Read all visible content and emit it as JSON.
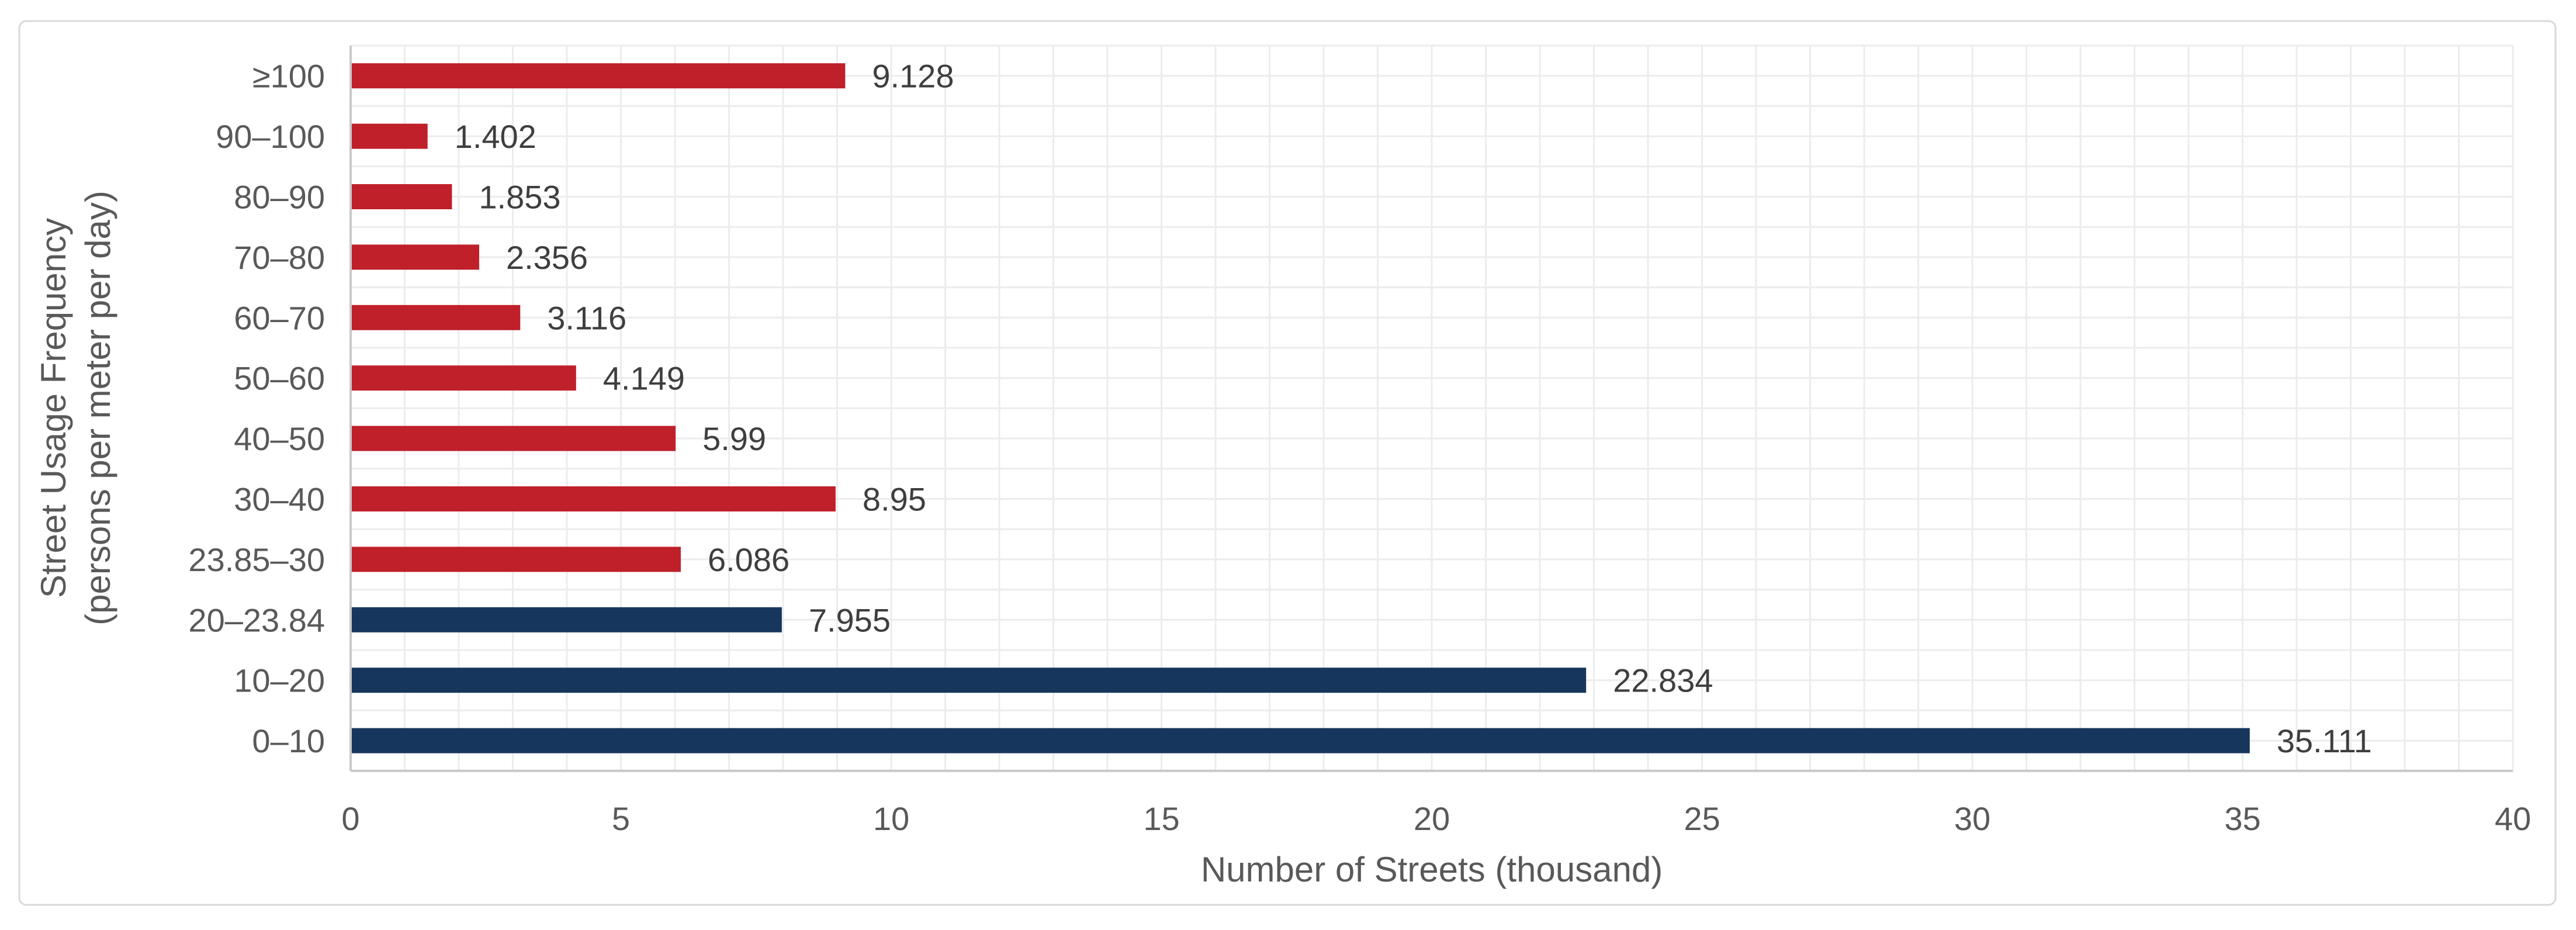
{
  "chart_data": {
    "type": "bar",
    "orientation": "horizontal",
    "title": "",
    "xlabel": "Number of Streets (thousand)",
    "ylabel_lines": [
      "Street Usage Frequency",
      "(persons per meter per day)"
    ],
    "categories": [
      "≥100",
      "90–100",
      "80–90",
      "70–80",
      "60–70",
      "50–60",
      "40–50",
      "30–40",
      "23.85–30",
      "20–23.84",
      "10–20",
      "0–10"
    ],
    "values": [
      9.128,
      1.402,
      1.853,
      2.356,
      3.116,
      4.149,
      5.99,
      8.95,
      6.086,
      7.955,
      22.834,
      35.111
    ],
    "value_labels": [
      "9.128",
      "1.402",
      "1.853",
      "2.356",
      "3.116",
      "4.149",
      "5.99",
      "8.95",
      "6.086",
      "7.955",
      "22.834",
      "35.111"
    ],
    "bar_colors": [
      "#BF202A",
      "#BF202A",
      "#BF202A",
      "#BF202A",
      "#BF202A",
      "#BF202A",
      "#BF202A",
      "#BF202A",
      "#BF202A",
      "#17365D",
      "#17365D",
      "#17365D"
    ],
    "xlim": [
      0,
      40
    ],
    "x_major_ticks": [
      0,
      5,
      10,
      15,
      20,
      25,
      30,
      35,
      40
    ],
    "x_minor_unit": 1,
    "grid": {
      "vertical_minor": true,
      "horizontal_lines_per_category": 2,
      "gridline_color": "#ECECEC",
      "axis_line_color": "#C9C9C9"
    },
    "legend": "none",
    "colors": {
      "bar_red": "#BF202A",
      "bar_navy": "#17365D",
      "tick_label_text": "#595959",
      "axis_title_text": "#595959",
      "value_label_text": "#3E3E3E",
      "card_border": "#D9D9D9",
      "background": "#FFFFFF"
    }
  }
}
